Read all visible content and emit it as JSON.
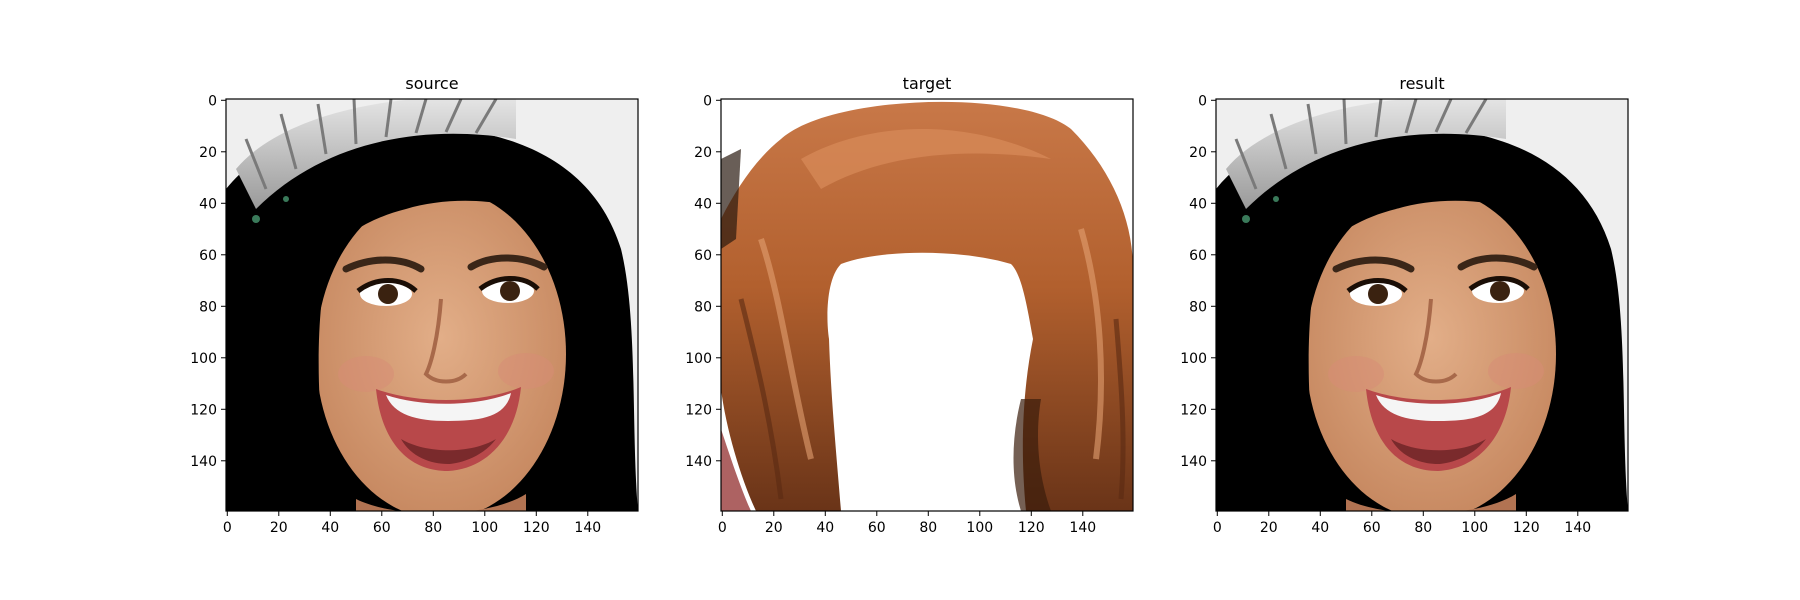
{
  "figure": {
    "panels": [
      {
        "id": "source",
        "title": "source",
        "image": "portrait-photo",
        "xticks": [
          "0",
          "20",
          "40",
          "60",
          "80",
          "100",
          "120",
          "140"
        ],
        "yticks": [
          "0",
          "20",
          "40",
          "60",
          "80",
          "100",
          "120",
          "140"
        ]
      },
      {
        "id": "target",
        "title": "target",
        "image": "hair-only-mask",
        "xticks": [
          "0",
          "20",
          "40",
          "60",
          "80",
          "100",
          "120",
          "140"
        ],
        "yticks": [
          "0",
          "20",
          "40",
          "60",
          "80",
          "100",
          "120",
          "140"
        ]
      },
      {
        "id": "result",
        "title": "result",
        "image": "recolored-portrait",
        "xticks": [
          "0",
          "20",
          "40",
          "60",
          "80",
          "100",
          "120",
          "140"
        ],
        "yticks": [
          "0",
          "20",
          "40",
          "60",
          "80",
          "100",
          "120",
          "140"
        ]
      }
    ],
    "axis_range": [
      0,
      160
    ],
    "colors": {
      "source_hair": "#6b4a2c",
      "target_hair": "#b8602e",
      "result_hair": "#8a3f1f",
      "skin": "#d9a07a",
      "background": "#efefef"
    }
  }
}
